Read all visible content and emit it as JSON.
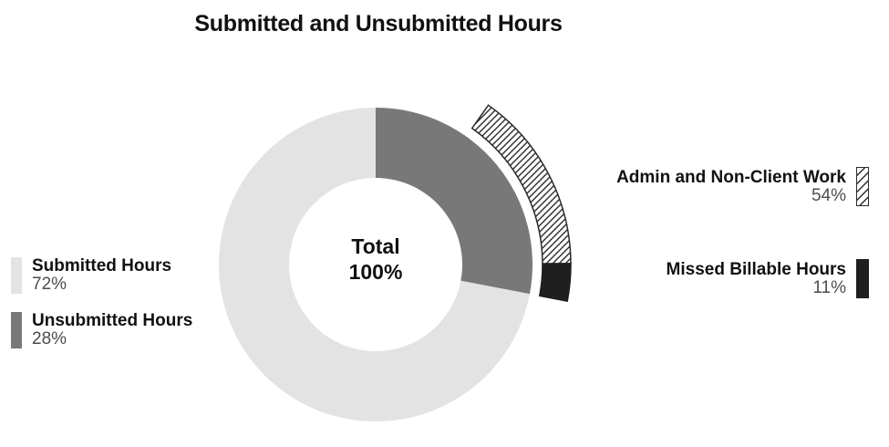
{
  "title": "Submitted and Unsubmitted Hours",
  "center_label": {
    "line1": "Total",
    "line2": "100%"
  },
  "colors": {
    "submitted": "#e3e3e3",
    "unsubmitted": "#787878",
    "missed": "#1f1f1f",
    "hatch_stroke": "#2b2b2b",
    "label_text": "#111111",
    "percent_text": "#4d4d4d",
    "background": "#ffffff"
  },
  "chart_data": {
    "type": "pie",
    "subtype": "donut-with-outer-breakdown-arc",
    "title": "Submitted and Unsubmitted Hours",
    "center_total": {
      "label": "Total",
      "value_pct": 100
    },
    "start_angle_deg": 0,
    "direction": "clockwise",
    "inner_ring": [
      {
        "name": "Submitted Hours",
        "value_pct": 72,
        "color": "#e3e3e3"
      },
      {
        "name": "Unsubmitted Hours",
        "value_pct": 28,
        "color": "#787878"
      }
    ],
    "outer_ring": [
      {
        "name": "Admin and Non-Client Work",
        "value_pct": 54,
        "fill": "pattern:diagonal-hatch",
        "stroke": "#2b2b2b"
      },
      {
        "name": "Missed Billable Hours",
        "value_pct": 11,
        "fill": "#1f1f1f",
        "stroke": "#1f1f1f"
      }
    ],
    "outer_ring_note": "Outer arc segments are drawn as fractions of the Unsubmitted Hours slice angle, anchored to the end of that slice.",
    "legend_position": "left-and-right",
    "grid": false
  },
  "legend_left": {
    "items": [
      {
        "label": "Submitted Hours",
        "percent": "72%"
      },
      {
        "label": "Unsubmitted Hours",
        "percent": "28%"
      }
    ]
  },
  "legend_right": {
    "items": [
      {
        "label": "Admin and Non-Client Work",
        "percent": "54%"
      },
      {
        "label": "Missed Billable Hours",
        "percent": "11%"
      }
    ]
  }
}
